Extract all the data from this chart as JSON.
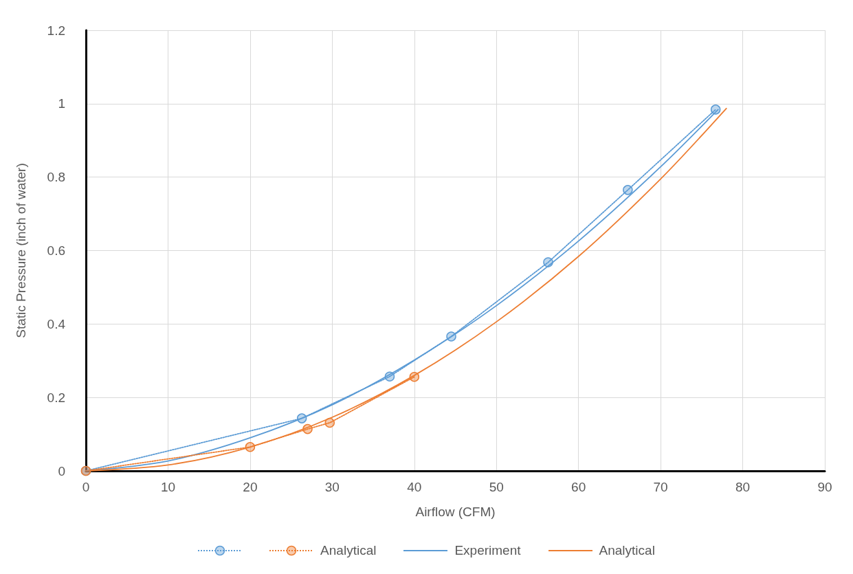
{
  "chart_data": {
    "type": "line",
    "xlabel": "Airflow (CFM)",
    "ylabel": "Static Pressure (inch of water)",
    "xlim": [
      0,
      90
    ],
    "xticks": [
      0,
      10,
      20,
      30,
      40,
      50,
      60,
      70,
      80,
      90
    ],
    "ylim": [
      0,
      1.2
    ],
    "yticks": [
      0,
      0.2,
      0.4,
      0.6,
      0.8,
      1,
      1.2
    ],
    "grid": true,
    "legend": "bottom",
    "series": [
      {
        "color": "#5b9bd5",
        "marker": "circle",
        "line_style": "dotted",
        "x": [
          0,
          26.3,
          37,
          44.5,
          56.3,
          66,
          76.7
        ],
        "values": [
          0,
          0.143,
          0.257,
          0.366,
          0.568,
          0.765,
          0.984
        ]
      },
      {
        "name": "Analytical",
        "color": "#ed7d31",
        "marker": "circle",
        "line_style": "dotted",
        "x": [
          0,
          20,
          27,
          29.7,
          40
        ],
        "values": [
          0,
          0.065,
          0.114,
          0.131,
          0.256
        ]
      },
      {
        "name": "Experiment",
        "color": "#5b9bd5",
        "marker": "none",
        "line_style": "solid",
        "x": [
          0,
          10,
          20,
          30,
          40,
          50,
          60,
          70,
          77
        ],
        "values": [
          0,
          0.027,
          0.09,
          0.18,
          0.302,
          0.45,
          0.626,
          0.828,
          0.984
        ]
      },
      {
        "name": "Analytical",
        "color": "#ed7d31",
        "marker": "none",
        "line_style": "solid",
        "x": [
          0,
          10,
          20,
          30,
          40,
          50,
          60,
          70,
          78
        ],
        "values": [
          0,
          0.016,
          0.065,
          0.146,
          0.26,
          0.406,
          0.584,
          0.795,
          0.987
        ]
      }
    ]
  }
}
